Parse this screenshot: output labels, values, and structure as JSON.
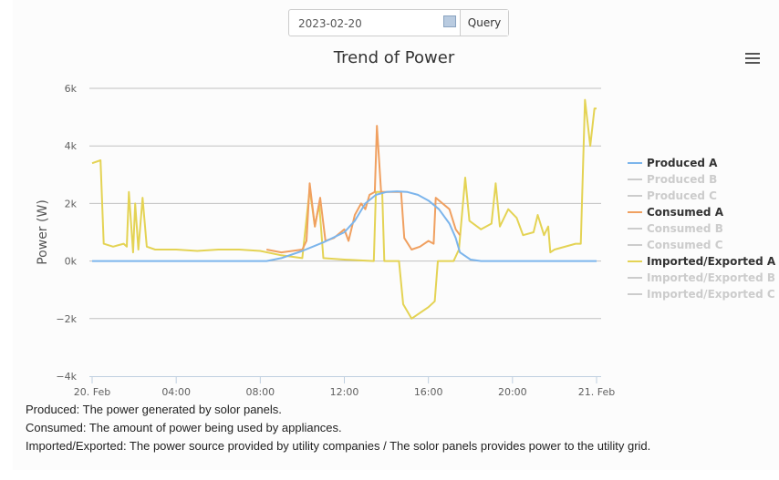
{
  "controls": {
    "date_value": "2023-02-20",
    "query_label": "Query"
  },
  "footer": [
    "Produced: The power generated by solor panels.",
    "Consumed: The amount of power being used by appliances.",
    "Imported/Exported: The power source provided by utility companies / The solor panels provides power to the utility grid."
  ],
  "chart_data": {
    "type": "line",
    "title": "Trend of Power",
    "ylabel": "Power (W)",
    "xlabel": "",
    "ylim": [
      -4000,
      6000
    ],
    "yticks": [
      -4000,
      -2000,
      0,
      2000,
      4000,
      6000
    ],
    "ytick_labels": [
      "−4k",
      "−2k",
      "0k",
      "2k",
      "4k",
      "6k"
    ],
    "xlim_hours": [
      0,
      24
    ],
    "xtick_hours": [
      0,
      4,
      8,
      12,
      16,
      20,
      24
    ],
    "xtick_labels": [
      "20. Feb",
      "04:00",
      "08:00",
      "12:00",
      "16:00",
      "20:00",
      "21. Feb"
    ],
    "grid": true,
    "legend_placement": "right",
    "series": [
      {
        "name": "Produced A",
        "color": "#7cb5ec",
        "visible": true,
        "points": [
          [
            0,
            0
          ],
          [
            8.3,
            0
          ],
          [
            9,
            100
          ],
          [
            10,
            350
          ],
          [
            10.5,
            500
          ],
          [
            11,
            650
          ],
          [
            12,
            1000
          ],
          [
            12.5,
            1400
          ],
          [
            13,
            2000
          ],
          [
            13.5,
            2300
          ],
          [
            14,
            2400
          ],
          [
            14.5,
            2420
          ],
          [
            15,
            2400
          ],
          [
            15.5,
            2300
          ],
          [
            16,
            2100
          ],
          [
            16.5,
            1800
          ],
          [
            17,
            1300
          ],
          [
            17.3,
            800
          ],
          [
            17.5,
            300
          ],
          [
            18,
            50
          ],
          [
            18.5,
            0
          ],
          [
            24,
            0
          ]
        ]
      },
      {
        "name": "Produced B",
        "color": "#cccccc",
        "visible": false,
        "points": []
      },
      {
        "name": "Produced C",
        "color": "#cccccc",
        "visible": false,
        "points": []
      },
      {
        "name": "Consumed A",
        "color": "#f0a060",
        "visible": true,
        "points": [
          [
            8.3,
            400
          ],
          [
            9,
            300
          ],
          [
            10,
            400
          ],
          [
            10.2,
            700
          ],
          [
            10.35,
            2700
          ],
          [
            10.6,
            1200
          ],
          [
            10.85,
            2200
          ],
          [
            11.1,
            700
          ],
          [
            11.5,
            800
          ],
          [
            12,
            1100
          ],
          [
            12.2,
            700
          ],
          [
            12.5,
            1600
          ],
          [
            12.8,
            2000
          ],
          [
            13,
            1800
          ],
          [
            13.2,
            2300
          ],
          [
            13.45,
            2400
          ],
          [
            13.55,
            4700
          ],
          [
            13.75,
            2400
          ],
          [
            14.7,
            2400
          ],
          [
            14.85,
            800
          ],
          [
            15.2,
            400
          ],
          [
            15.6,
            500
          ],
          [
            16,
            700
          ],
          [
            16.25,
            600
          ],
          [
            16.35,
            2200
          ],
          [
            17,
            1800
          ],
          [
            17.3,
            1100
          ],
          [
            17.5,
            900
          ]
        ]
      },
      {
        "name": "Consumed B",
        "color": "#cccccc",
        "visible": false,
        "points": []
      },
      {
        "name": "Consumed C",
        "color": "#cccccc",
        "visible": false,
        "points": []
      },
      {
        "name": "Imported/Exported A",
        "color": "#e4d354",
        "visible": true,
        "points": [
          [
            0,
            3400
          ],
          [
            0.4,
            3500
          ],
          [
            0.55,
            600
          ],
          [
            1,
            500
          ],
          [
            1.5,
            600
          ],
          [
            1.65,
            500
          ],
          [
            1.75,
            2400
          ],
          [
            1.95,
            300
          ],
          [
            2.05,
            2000
          ],
          [
            2.2,
            400
          ],
          [
            2.4,
            2200
          ],
          [
            2.6,
            500
          ],
          [
            3,
            400
          ],
          [
            4,
            400
          ],
          [
            5,
            350
          ],
          [
            6,
            400
          ],
          [
            7,
            400
          ],
          [
            8,
            350
          ],
          [
            9,
            200
          ],
          [
            10,
            100
          ],
          [
            10.35,
            2500
          ],
          [
            10.6,
            1200
          ],
          [
            10.8,
            2000
          ],
          [
            11,
            100
          ],
          [
            12,
            50
          ],
          [
            13.4,
            0
          ],
          [
            13.5,
            2400
          ],
          [
            13.8,
            2400
          ],
          [
            13.9,
            0
          ],
          [
            14.6,
            0
          ],
          [
            14.8,
            -1500
          ],
          [
            15.2,
            -2000
          ],
          [
            16,
            -1600
          ],
          [
            16.3,
            -1400
          ],
          [
            16.45,
            0
          ],
          [
            17.2,
            0
          ],
          [
            17.45,
            400
          ],
          [
            17.75,
            2900
          ],
          [
            17.95,
            1400
          ],
          [
            18.5,
            1100
          ],
          [
            19,
            1300
          ],
          [
            19.2,
            2700
          ],
          [
            19.4,
            1200
          ],
          [
            19.8,
            1800
          ],
          [
            20.2,
            1500
          ],
          [
            20.5,
            900
          ],
          [
            21,
            1000
          ],
          [
            21.2,
            1600
          ],
          [
            21.5,
            900
          ],
          [
            21.7,
            1200
          ],
          [
            21.8,
            300
          ],
          [
            22,
            400
          ],
          [
            23,
            600
          ],
          [
            23.25,
            600
          ],
          [
            23.45,
            5600
          ],
          [
            23.7,
            4000
          ],
          [
            23.9,
            5300
          ],
          [
            24,
            5300
          ]
        ]
      },
      {
        "name": "Imported/Exported B",
        "color": "#cccccc",
        "visible": false,
        "points": []
      },
      {
        "name": "Imported/Exported C",
        "color": "#cccccc",
        "visible": false,
        "points": []
      }
    ]
  }
}
